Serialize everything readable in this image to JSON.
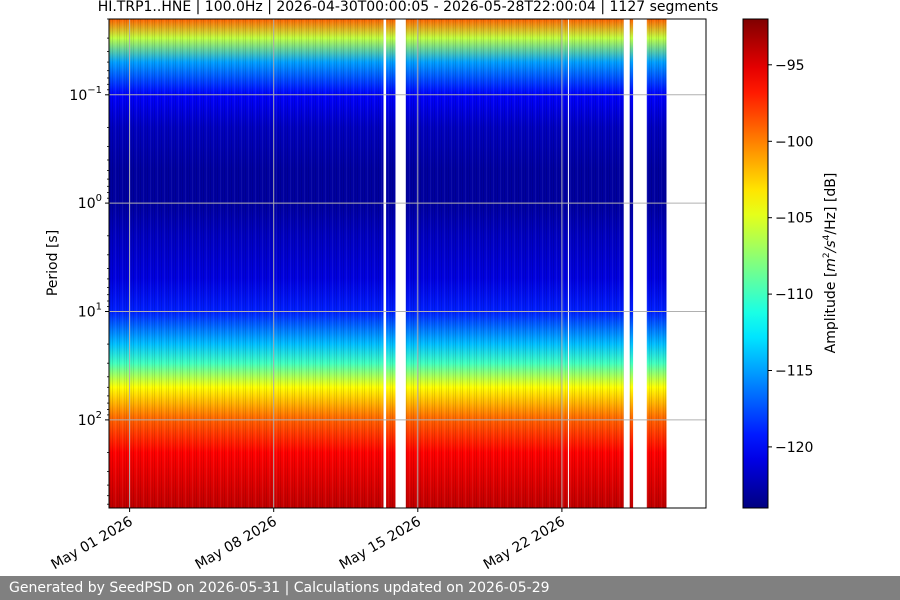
{
  "chart_data": {
    "type": "heatmap",
    "title": "HI.TRP1..HNE | 100.0Hz | 2026-04-30T00:00:05 - 2026-05-28T22:00:04 | 1127 segments",
    "ylabel": "Period [s]",
    "y_scale": "log",
    "y_inverted": true,
    "ylim": [
      0.02,
      650
    ],
    "y_ticks": [
      {
        "value": 0.1,
        "base": "10",
        "exp": "−1"
      },
      {
        "value": 1,
        "base": "10",
        "exp": "0"
      },
      {
        "value": 10,
        "base": "10",
        "exp": "1"
      },
      {
        "value": 100,
        "base": "10",
        "exp": "2"
      }
    ],
    "x_range": [
      "2026-04-30",
      "2026-05-29"
    ],
    "x_ticks": [
      {
        "date": "2026-05-01",
        "label": "May 01 2026"
      },
      {
        "date": "2026-05-08",
        "label": "May 08 2026"
      },
      {
        "date": "2026-05-15",
        "label": "May 15 2026"
      },
      {
        "date": "2026-05-22",
        "label": "May 22 2026"
      }
    ],
    "grid": true,
    "colormap": "jet",
    "colorbar": {
      "label_main": "Amplitude [",
      "label_m": "m",
      "label_sup1": "2",
      "label_mid": "/s",
      "label_sup2": "4",
      "label_tail": "/Hz] [dB]",
      "range": [
        -124,
        -92
      ],
      "ticks": [
        {
          "value": -95,
          "label": "−95"
        },
        {
          "value": -100,
          "label": "−100"
        },
        {
          "value": -105,
          "label": "−105"
        },
        {
          "value": -110,
          "label": "−110"
        },
        {
          "value": -115,
          "label": "−115"
        },
        {
          "value": -120,
          "label": "−120"
        }
      ]
    },
    "profile": {
      "periods": [
        0.02,
        0.03,
        0.05,
        0.1,
        0.2,
        0.5,
        1,
        2,
        5,
        10,
        20,
        30,
        50,
        100,
        200,
        650
      ],
      "amplitude_db": [
        -99,
        -106,
        -115,
        -120,
        -122,
        -123,
        -123,
        -122,
        -121,
        -119,
        -114,
        -110,
        -104,
        -99,
        -96,
        -94
      ]
    },
    "data_gaps": [
      [
        "2026-05-13T08:00",
        "2026-05-13T11:00"
      ],
      [
        "2026-05-13T22:00",
        "2026-05-14T10:00"
      ],
      [
        "2026-05-22T07:00",
        "2026-05-22T08:00"
      ],
      [
        "2026-05-25T00:00",
        "2026-05-25T07:00"
      ],
      [
        "2026-05-25T11:00",
        "2026-05-26T03:00"
      ],
      [
        "2026-05-27T02:00",
        "2026-05-29T00:00"
      ]
    ]
  },
  "footer": {
    "text": "Generated by SeedPSD on 2026-05-31 | Calculations updated on 2026-05-29"
  }
}
